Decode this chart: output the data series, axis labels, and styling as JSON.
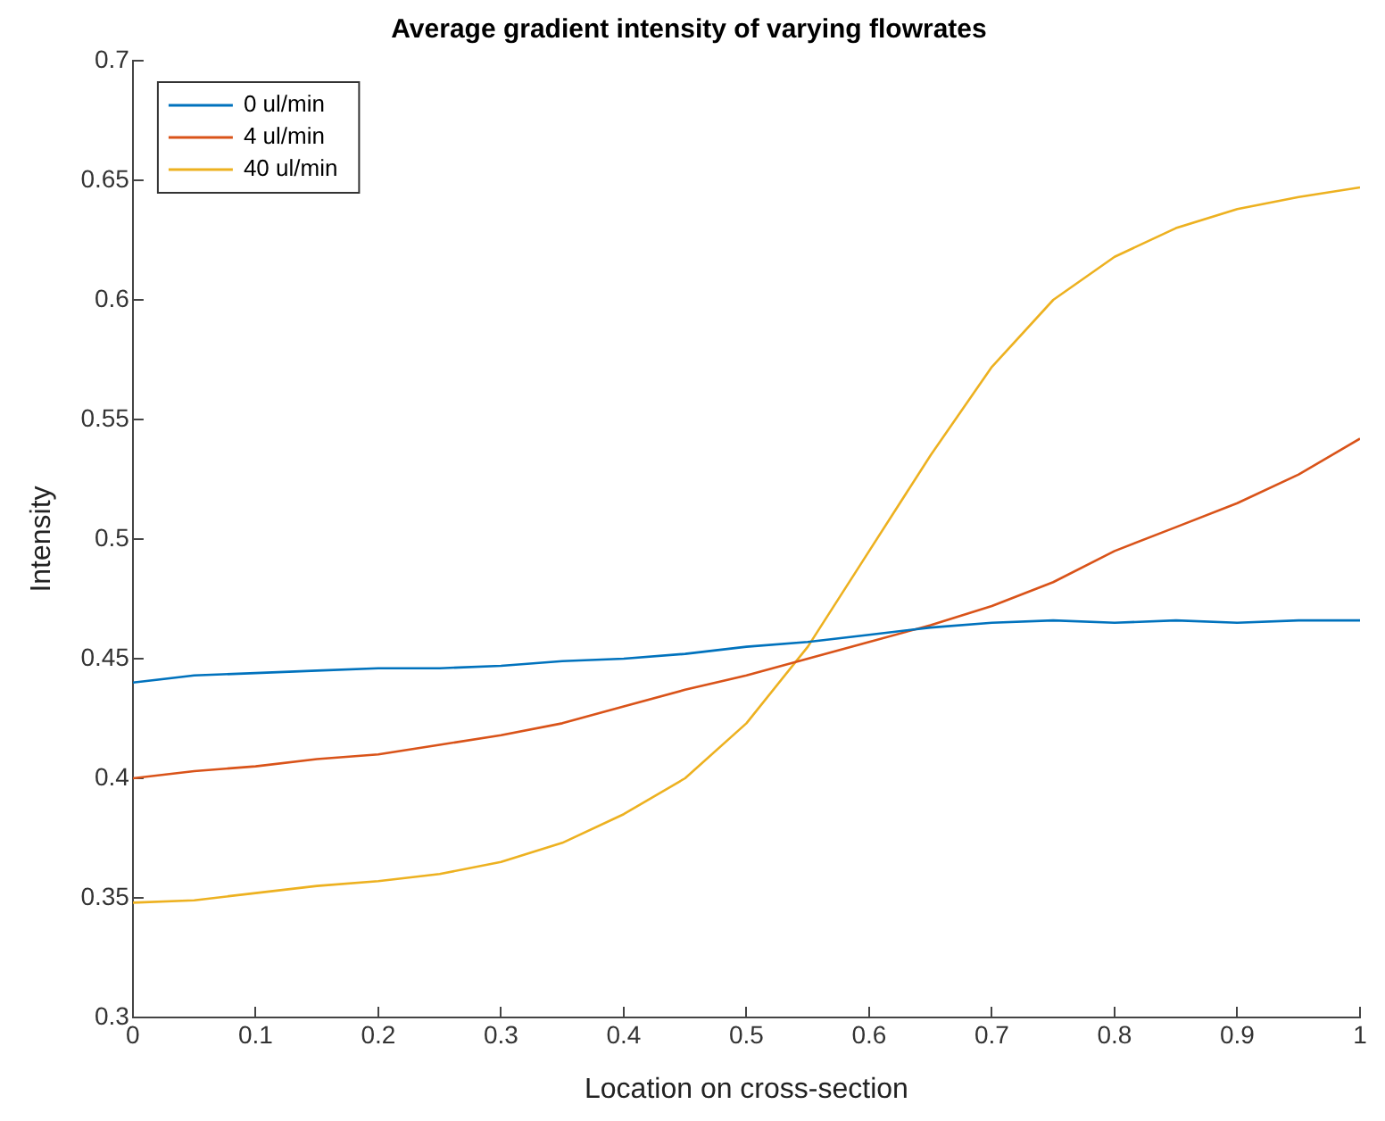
{
  "chart_data": {
    "type": "line",
    "title": "Average gradient intensity of varying flowrates",
    "xlabel": "Location on cross-section",
    "ylabel": "Intensity",
    "x": [
      0,
      0.05,
      0.1,
      0.15,
      0.2,
      0.25,
      0.3,
      0.35,
      0.4,
      0.45,
      0.5,
      0.55,
      0.6,
      0.65,
      0.7,
      0.75,
      0.8,
      0.85,
      0.9,
      0.95,
      1
    ],
    "series": [
      {
        "name": "0 ul/min",
        "color": "#0072bd",
        "values": [
          0.44,
          0.443,
          0.444,
          0.445,
          0.446,
          0.446,
          0.447,
          0.449,
          0.45,
          0.452,
          0.455,
          0.457,
          0.46,
          0.463,
          0.465,
          0.466,
          0.465,
          0.466,
          0.465,
          0.466,
          0.466
        ]
      },
      {
        "name": "4 ul/min",
        "color": "#d95319",
        "values": [
          0.4,
          0.403,
          0.405,
          0.408,
          0.41,
          0.414,
          0.418,
          0.423,
          0.43,
          0.437,
          0.443,
          0.45,
          0.457,
          0.464,
          0.472,
          0.482,
          0.495,
          0.505,
          0.515,
          0.527,
          0.542
        ]
      },
      {
        "name": "40 ul/min",
        "color": "#edb120",
        "values": [
          0.348,
          0.349,
          0.352,
          0.355,
          0.357,
          0.36,
          0.365,
          0.373,
          0.385,
          0.4,
          0.423,
          0.455,
          0.495,
          0.535,
          0.572,
          0.6,
          0.618,
          0.63,
          0.638,
          0.643,
          0.647
        ]
      }
    ],
    "xlim": [
      0,
      1
    ],
    "xticks": [
      0,
      0.1,
      0.2,
      0.3,
      0.4,
      0.5,
      0.6,
      0.7,
      0.8,
      0.9,
      1
    ],
    "ylim": [
      0.3,
      0.7
    ],
    "yticks": [
      0.3,
      0.35,
      0.4,
      0.45,
      0.5,
      0.55,
      0.6,
      0.65,
      0.7
    ],
    "grid": false,
    "legend": "top left",
    "marker": "none",
    "line_style": "solid"
  }
}
